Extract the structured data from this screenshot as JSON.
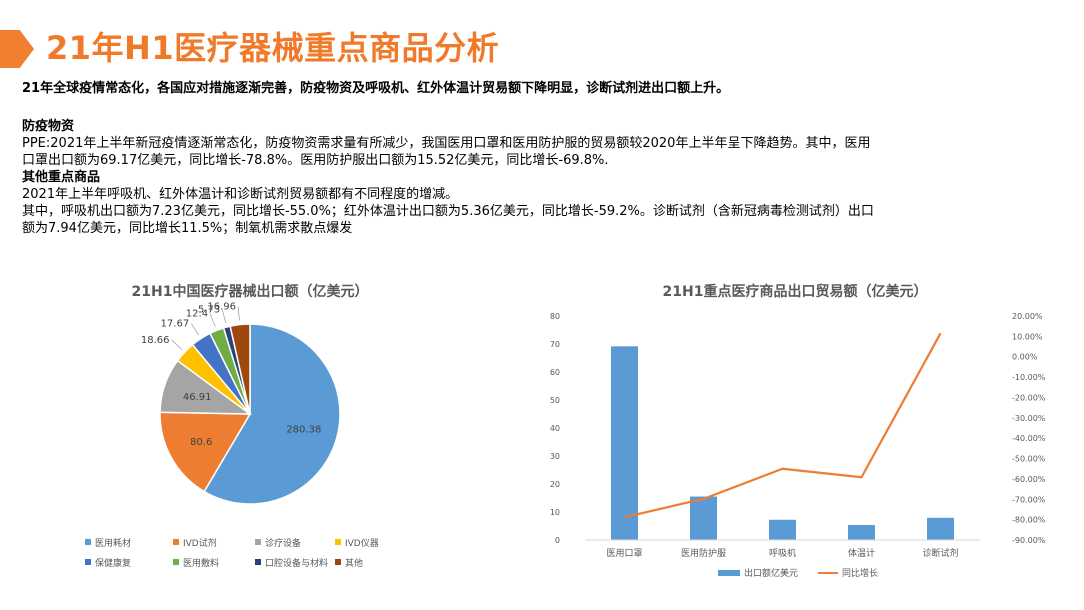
{
  "page_title": "21年H1医疗器械重点商品分析",
  "summary": "21年全球疫情常态化，各国应对措施逐渐完善，防疫物资及呼吸机、红外体温计贸易额下降明显，诊断试剂进出口额上升。",
  "sections": [
    {
      "heading": "防疫物资",
      "lines": [
        "PPE:2021年上半年新冠疫情逐渐常态化，防疫物资需求量有所减少，我国医用口罩和医用防护服的贸易额较2020年上半年呈下降趋势。其中，医用",
        "口罩出口额为69.17亿美元，同比增长-78.8%。医用防护服出口额为15.52亿美元，同比增长-69.8%."
      ]
    },
    {
      "heading": "其他重点商品",
      "lines": [
        "2021年上半年呼吸机、红外体温计和诊断试剂贸易额都有不同程度的增减。",
        "其中，呼吸机出口额为7.23亿美元，同比增长-55.0%；红外体温计出口额为5.36亿美元，同比增长-59.2%。诊断试剂（含新冠病毒检测试剂）出口",
        "额为7.94亿美元，同比增长11.5%；制氧机需求散点爆发"
      ]
    }
  ],
  "chart_data": [
    {
      "type": "pie",
      "title": "21H1中国医疗器械出口额（亿美元）",
      "legend_position": "bottom",
      "slices": [
        {
          "label": "医用耗材",
          "value": 280.38,
          "color": "#5b9bd5"
        },
        {
          "label": "IVD试剂",
          "value": 80.6,
          "color": "#ed7d31"
        },
        {
          "label": "诊疗设备",
          "value": 46.91,
          "color": "#a5a5a5"
        },
        {
          "label": "IVD仪器",
          "value": 18.66,
          "color": "#ffc000"
        },
        {
          "label": "保健康复",
          "value": 17.67,
          "color": "#4472c4"
        },
        {
          "label": "医用敷料",
          "value": 12.4,
          "color": "#70ad47"
        },
        {
          "label": "口腔设备与材料",
          "value": 5.73,
          "color": "#264478"
        },
        {
          "label": "其他",
          "value": 16.96,
          "color": "#9e480e"
        }
      ]
    },
    {
      "type": "bar",
      "title": "21H1重点医疗商品出口贸易额（亿美元）",
      "categories": [
        "医用口罩",
        "医用防护服",
        "呼吸机",
        "体温计",
        "诊断试剂"
      ],
      "series": [
        {
          "name": "出口额亿美元",
          "type": "bar",
          "axis": "left",
          "color": "#5b9bd5",
          "values": [
            69.17,
            15.52,
            7.23,
            5.36,
            7.94
          ]
        },
        {
          "name": "同比增长",
          "type": "line",
          "axis": "right",
          "color": "#ed7d31",
          "values": [
            -78.8,
            -69.8,
            -55.0,
            -59.2,
            11.5
          ]
        }
      ],
      "ylim": [
        0,
        80
      ],
      "y_ticks": [
        "0",
        "10",
        "20",
        "30",
        "40",
        "50",
        "60",
        "70",
        "80"
      ],
      "y2lim": [
        -90,
        20
      ],
      "y2_ticks": [
        "-90.00%",
        "-80.00%",
        "-70.00%",
        "-60.00%",
        "-50.00%",
        "-40.00%",
        "-30.00%",
        "-20.00%",
        "-10.00%",
        "0.00%",
        "10.00%",
        "20.00%"
      ],
      "grid": false,
      "legend_position": "bottom"
    }
  ]
}
